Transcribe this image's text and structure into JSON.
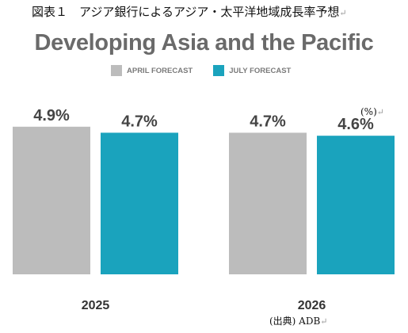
{
  "figure": {
    "caption": "図表１　アジア銀行によるアジア・太平洋地域成長率予想",
    "unit": "(%)",
    "source": "(出典) ADB",
    "return_mark": "↵"
  },
  "colors": {
    "april": "#bcbcbc",
    "july": "#1aa3bd",
    "text": "#444444"
  },
  "chart_data": {
    "type": "bar",
    "title": "Developing Asia and the Pacific",
    "categories": [
      "2025",
      "2026"
    ],
    "series": [
      {
        "name": "APRIL FORECAST",
        "values": [
          4.9,
          4.7
        ],
        "labels": [
          "4.9%",
          "4.7%"
        ]
      },
      {
        "name": "JULY FORECAST",
        "values": [
          4.7,
          4.6
        ],
        "labels": [
          "4.7%",
          "4.6%"
        ]
      }
    ],
    "xlabel": "",
    "ylabel": "",
    "ylim": [
      0,
      5.0
    ],
    "legend_position": "top",
    "grid": false
  }
}
